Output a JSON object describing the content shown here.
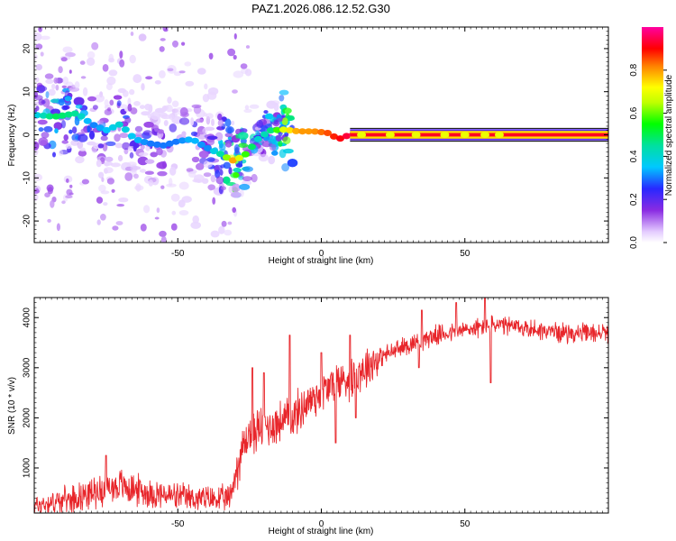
{
  "title": "PAZ1.2026.086.12.52.G30",
  "chart_data": [
    {
      "type": "heatmap",
      "title": "PAZ1.2026.086.12.52.G30",
      "xlabel": "Height of straight line (km)",
      "ylabel": "Frequency (Hz)",
      "xlim": [
        -100,
        100
      ],
      "ylim": [
        -25,
        25
      ],
      "xticks": [
        -50,
        0,
        50
      ],
      "xtick_labels": [
        "-50",
        "0",
        "50"
      ],
      "yticks": [
        -20,
        -10,
        0,
        10,
        20
      ],
      "ytick_labels": [
        "-20",
        "-10",
        "0",
        "10",
        "20"
      ],
      "colorbar": {
        "label": "Normalized spectral amplitude",
        "range": [
          0,
          1
        ],
        "ticks": [
          0.0,
          0.2,
          0.4,
          0.6,
          0.8
        ],
        "tick_labels": [
          "0.0",
          "0.2",
          "0.4",
          "0.6",
          "0.8"
        ]
      },
      "ridge": [
        {
          "x": -98,
          "f": 4.5,
          "a": 0.4
        },
        {
          "x": -93,
          "f": 4.2,
          "a": 0.5
        },
        {
          "x": -85,
          "f": 5.0,
          "a": 0.45
        },
        {
          "x": -80,
          "f": 2.5,
          "a": 0.3
        },
        {
          "x": -75,
          "f": 1.0,
          "a": 0.35
        },
        {
          "x": -70,
          "f": 2.5,
          "a": 0.4
        },
        {
          "x": -65,
          "f": -1.0,
          "a": 0.35
        },
        {
          "x": -60,
          "f": -2.0,
          "a": 0.3
        },
        {
          "x": -55,
          "f": -2.5,
          "a": 0.3
        },
        {
          "x": -50,
          "f": -1.5,
          "a": 0.3
        },
        {
          "x": -45,
          "f": -1.0,
          "a": 0.35
        },
        {
          "x": -40,
          "f": -3.0,
          "a": 0.3
        },
        {
          "x": -35,
          "f": -4.5,
          "a": 0.45
        },
        {
          "x": -31,
          "f": -6.0,
          "a": 0.8
        },
        {
          "x": -27,
          "f": -5.0,
          "a": 0.6
        },
        {
          "x": -22,
          "f": -1.0,
          "a": 0.4
        },
        {
          "x": -18,
          "f": 1.0,
          "a": 0.45
        },
        {
          "x": -13,
          "f": 1.2,
          "a": 0.7
        },
        {
          "x": -8,
          "f": 0.8,
          "a": 0.8
        },
        {
          "x": -3,
          "f": 0.8,
          "a": 0.8
        },
        {
          "x": 2,
          "f": 0.5,
          "a": 0.85
        },
        {
          "x": 6,
          "f": -1.0,
          "a": 0.9
        },
        {
          "x": 10,
          "f": 0.0,
          "a": 0.95
        },
        {
          "x": 15,
          "f": 0.0,
          "a": 1.0
        },
        {
          "x": 25,
          "f": 0.0,
          "a": 1.0
        },
        {
          "x": 40,
          "f": 0.0,
          "a": 1.0
        },
        {
          "x": 60,
          "f": 0.0,
          "a": 1.0
        },
        {
          "x": 80,
          "f": 0.0,
          "a": 1.0
        },
        {
          "x": 100,
          "f": 0.0,
          "a": 1.0
        }
      ]
    },
    {
      "type": "line",
      "xlabel": "Height of straight line (km)",
      "ylabel": "SNR (10 * v/v)",
      "xlim": [
        -100,
        100
      ],
      "ylim": [
        100,
        4400
      ],
      "xticks": [
        -50,
        0,
        50
      ],
      "xtick_labels": [
        "-50",
        "0",
        "50"
      ],
      "yticks": [
        1000,
        2000,
        3000,
        4000
      ],
      "ytick_labels": [
        "1000",
        "2000",
        "3000",
        "4000"
      ],
      "series": [
        {
          "name": "SNR",
          "color": "#e8262b",
          "trend": {
            "x": [
              -100,
              -90,
              -80,
              -75,
              -70,
              -60,
              -50,
              -40,
              -32,
              -28,
              -25,
              -20,
              -15,
              -10,
              -5,
              0,
              5,
              10,
              15,
              20,
              30,
              35,
              40,
              50,
              55,
              60,
              70,
              80,
              90,
              100
            ],
            "y": [
              250,
              350,
              500,
              600,
              650,
              500,
              420,
              380,
              380,
              1300,
              1700,
              1800,
              1900,
              2000,
              2300,
              2500,
              2700,
              2800,
              3000,
              3200,
              3450,
              3550,
              3650,
              3750,
              3800,
              3850,
              3800,
              3720,
              3680,
              3700
            ]
          },
          "spikes": [
            {
              "x": -75,
              "y": 1250
            },
            {
              "x": -24,
              "y": 3000
            },
            {
              "x": -20,
              "y": 2900
            },
            {
              "x": -11,
              "y": 3650
            },
            {
              "x": 0,
              "y": 3300
            },
            {
              "x": 10,
              "y": 3650
            },
            {
              "x": 35,
              "y": 4150
            },
            {
              "x": 47,
              "y": 4300
            },
            {
              "x": 57,
              "y": 4400
            },
            {
              "x": 59,
              "y": 4150
            }
          ],
          "dips": [
            {
              "x": 5,
              "y": 1500
            },
            {
              "x": 12,
              "y": 2000
            },
            {
              "x": 34,
              "y": 3000
            },
            {
              "x": 59,
              "y": 2700
            }
          ]
        }
      ]
    }
  ]
}
